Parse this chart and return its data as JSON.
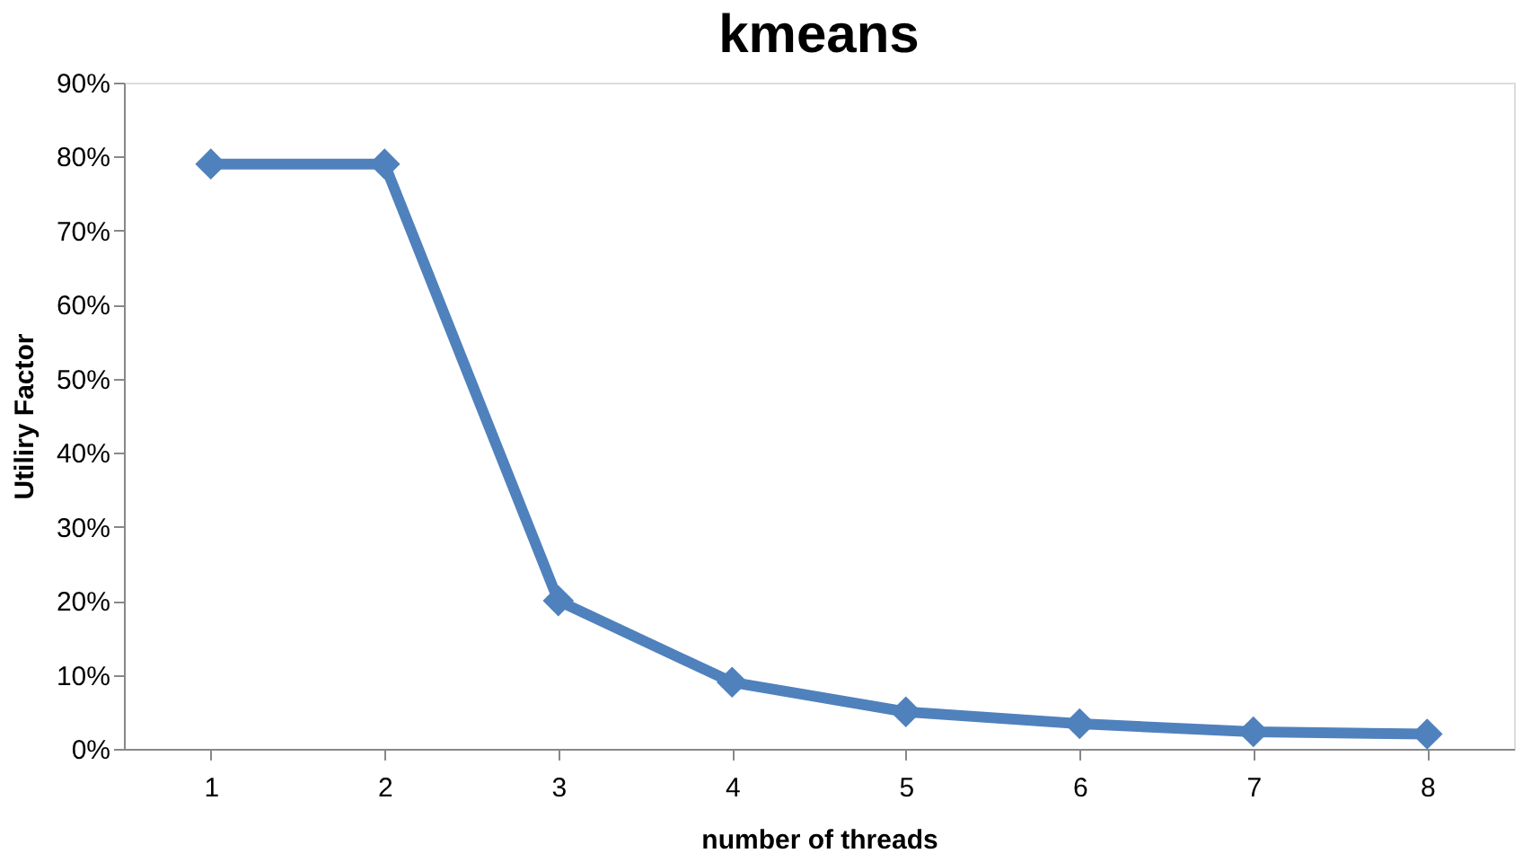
{
  "chart_data": {
    "type": "line",
    "title": "kmeans",
    "xlabel": "number of threads",
    "ylabel": "Utiliry Factor",
    "categories": [
      "1",
      "2",
      "3",
      "4",
      "5",
      "6",
      "7",
      "8"
    ],
    "series": [
      {
        "color": "#4f81bd",
        "values": [
          79,
          79,
          20,
          9,
          5,
          3.4,
          2.3,
          2
        ]
      }
    ],
    "ylim": [
      0,
      90
    ],
    "yticks": [
      {
        "value": 0,
        "label": "0%"
      },
      {
        "value": 10,
        "label": "10%"
      },
      {
        "value": 20,
        "label": "20%"
      },
      {
        "value": 30,
        "label": "30%"
      },
      {
        "value": 40,
        "label": "40%"
      },
      {
        "value": 50,
        "label": "50%"
      },
      {
        "value": 60,
        "label": "60%"
      },
      {
        "value": 70,
        "label": "70%"
      },
      {
        "value": 80,
        "label": "80%"
      },
      {
        "value": 90,
        "label": "90%"
      }
    ],
    "grid": false,
    "marker": "diamond",
    "line_style": "solid"
  }
}
